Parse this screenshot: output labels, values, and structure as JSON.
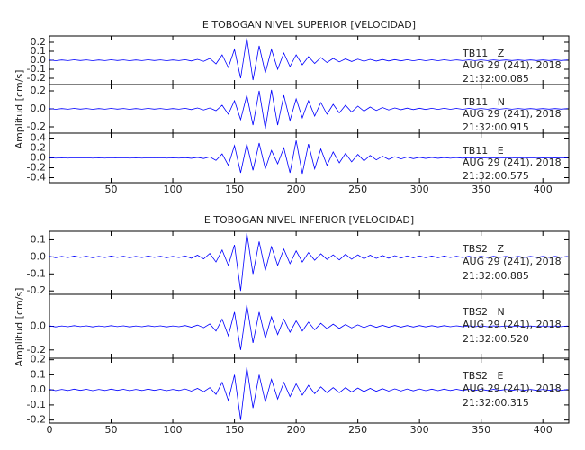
{
  "chart_data": [
    {
      "type": "line",
      "title": "E TOBOGAN NIVEL SUPERIOR [VELOCIDAD]",
      "y_label": "Amplitud [cm/s]",
      "x": [
        0,
        5,
        10,
        15,
        20,
        25,
        30,
        35,
        40,
        45,
        50,
        55,
        60,
        65,
        70,
        75,
        80,
        85,
        90,
        95,
        100,
        105,
        110,
        115,
        120,
        125,
        130,
        135,
        140,
        145,
        150,
        155,
        160,
        165,
        170,
        175,
        180,
        185,
        190,
        195,
        200,
        205,
        210,
        215,
        220,
        225,
        230,
        235,
        240,
        245,
        250,
        255,
        260,
        265,
        270,
        275,
        280,
        285,
        290,
        295,
        300,
        305,
        310,
        315,
        320,
        325,
        330,
        335,
        340,
        345,
        350,
        355,
        360,
        365,
        370,
        375,
        380,
        385,
        390,
        395,
        400,
        405,
        410,
        415,
        420
      ],
      "xlim": [
        0,
        421
      ],
      "xticks": [
        50,
        100,
        150,
        200,
        250,
        300,
        350,
        400
      ],
      "panels": [
        {
          "name": "TB11   Z",
          "date": "AUG 29 (241), 2018",
          "time": "21:32:00.085",
          "color": "#0000ff",
          "ylim": [
            -0.27,
            0.27
          ],
          "yticks": [
            -0.2,
            -0.1,
            {
              "value": 0,
              "label": "0.0"
            },
            0.1,
            0.2
          ],
          "values": [
            0.004,
            -0.005,
            0.003,
            -0.004,
            0.005,
            -0.003,
            0.004,
            -0.005,
            0.003,
            -0.004,
            0.005,
            -0.003,
            0.004,
            -0.005,
            0.003,
            -0.004,
            0.005,
            -0.003,
            0.004,
            -0.005,
            0.003,
            -0.004,
            0.006,
            -0.008,
            0.01,
            -0.012,
            0.02,
            -0.04,
            0.06,
            -0.08,
            0.12,
            -0.2,
            0.25,
            -0.22,
            0.16,
            -0.14,
            0.12,
            -0.1,
            0.08,
            -0.07,
            0.06,
            -0.05,
            0.04,
            -0.035,
            0.03,
            -0.025,
            0.02,
            -0.018,
            0.015,
            -0.014,
            0.012,
            -0.011,
            0.01,
            -0.009,
            0.008,
            -0.008,
            0.007,
            -0.007,
            0.006,
            -0.006,
            0.006,
            -0.005,
            0.005,
            -0.005,
            0.005,
            -0.004,
            0.004,
            -0.004,
            0.004,
            -0.004,
            0.004,
            -0.004,
            0.004,
            -0.003,
            0.003,
            -0.003,
            0.003,
            -0.003,
            0.003,
            -0.003,
            0.003,
            -0.003,
            0.003,
            -0.003,
            0.003
          ]
        },
        {
          "name": "TB11   N",
          "date": "AUG 29 (241), 2018",
          "time": "21:32:00.915",
          "color": "#0000ff",
          "ylim": [
            -0.27,
            0.27
          ],
          "yticks": [
            -0.2,
            {
              "value": 0,
              "label": "0.0"
            },
            0.2
          ],
          "values": [
            0.004,
            -0.005,
            0.003,
            -0.004,
            0.005,
            -0.003,
            0.004,
            -0.005,
            0.003,
            -0.004,
            0.005,
            -0.003,
            0.004,
            -0.005,
            0.003,
            -0.004,
            0.005,
            -0.003,
            0.004,
            -0.005,
            0.003,
            -0.004,
            0.006,
            -0.008,
            0.01,
            -0.012,
            0.01,
            -0.02,
            0.04,
            -0.06,
            0.09,
            -0.12,
            0.15,
            -0.18,
            0.2,
            -0.22,
            0.21,
            -0.18,
            0.15,
            -0.13,
            0.11,
            -0.1,
            0.09,
            -0.08,
            0.07,
            -0.06,
            0.05,
            -0.045,
            0.04,
            -0.035,
            0.03,
            -0.025,
            0.02,
            -0.018,
            0.015,
            -0.012,
            0.01,
            -0.009,
            0.008,
            -0.008,
            0.007,
            -0.007,
            0.006,
            -0.006,
            0.006,
            -0.005,
            0.005,
            -0.005,
            0.005,
            -0.004,
            0.004,
            -0.004,
            0.004,
            -0.004,
            0.004,
            -0.004,
            0.004,
            -0.003,
            0.003,
            -0.003,
            0.003,
            -0.003,
            0.003,
            -0.003,
            0.003
          ]
        },
        {
          "name": "TB11   E",
          "date": "AUG 29 (241), 2018",
          "time": "21:32:00.575",
          "color": "#0000ff",
          "ylim": [
            -0.5,
            0.5
          ],
          "yticks": [
            -0.4,
            -0.2,
            {
              "value": 0,
              "label": "0.0"
            },
            0.2,
            0.4
          ],
          "values": [
            0.004,
            -0.005,
            0.003,
            -0.004,
            0.005,
            -0.003,
            0.004,
            -0.005,
            0.003,
            -0.004,
            0.005,
            -0.003,
            0.004,
            -0.005,
            0.003,
            -0.004,
            0.005,
            -0.003,
            0.004,
            -0.005,
            0.003,
            -0.004,
            0.006,
            -0.008,
            0.01,
            -0.012,
            0.02,
            -0.05,
            0.08,
            -0.15,
            0.25,
            -0.3,
            0.28,
            -0.25,
            0.3,
            -0.22,
            0.15,
            -0.12,
            0.2,
            -0.3,
            0.35,
            -0.32,
            0.28,
            -0.22,
            0.18,
            -0.15,
            0.12,
            -0.1,
            0.09,
            -0.08,
            0.07,
            -0.06,
            0.05,
            -0.04,
            0.035,
            -0.03,
            0.025,
            -0.02,
            0.018,
            -0.015,
            0.012,
            -0.01,
            0.009,
            -0.008,
            0.008,
            -0.007,
            0.007,
            -0.006,
            0.006,
            -0.006,
            0.005,
            -0.005,
            0.005,
            -0.005,
            0.004,
            -0.004,
            0.004,
            -0.004,
            0.004,
            -0.004,
            0.003,
            -0.003,
            0.003,
            -0.003,
            0.003
          ]
        }
      ]
    },
    {
      "type": "line",
      "title": "E TOBOGAN NIVEL INFERIOR [VELOCIDAD]",
      "y_label": "Amplitud [cm/s]",
      "x": [
        0,
        5,
        10,
        15,
        20,
        25,
        30,
        35,
        40,
        45,
        50,
        55,
        60,
        65,
        70,
        75,
        80,
        85,
        90,
        95,
        100,
        105,
        110,
        115,
        120,
        125,
        130,
        135,
        140,
        145,
        150,
        155,
        160,
        165,
        170,
        175,
        180,
        185,
        190,
        195,
        200,
        205,
        210,
        215,
        220,
        225,
        230,
        235,
        240,
        245,
        250,
        255,
        260,
        265,
        270,
        275,
        280,
        285,
        290,
        295,
        300,
        305,
        310,
        315,
        320,
        325,
        330,
        335,
        340,
        345,
        350,
        355,
        360,
        365,
        370,
        375,
        380,
        385,
        390,
        395,
        400,
        405,
        410,
        415,
        420
      ],
      "xlim": [
        0,
        421
      ],
      "xticks": [
        0,
        50,
        100,
        150,
        200,
        250,
        300,
        350,
        400
      ],
      "panels": [
        {
          "name": "TBS2   Z",
          "date": "AUG 29 (241), 2018",
          "time": "21:32:00.885",
          "color": "#0000ff",
          "ylim": [
            -0.22,
            0.15
          ],
          "yticks": [
            -0.2,
            -0.1,
            {
              "value": 0,
              "label": "0.0"
            },
            0.1
          ],
          "values": [
            0.004,
            -0.005,
            0.003,
            -0.004,
            0.005,
            -0.003,
            0.004,
            -0.005,
            0.003,
            -0.004,
            0.005,
            -0.003,
            0.004,
            -0.005,
            0.003,
            -0.004,
            0.005,
            -0.003,
            0.004,
            -0.005,
            0.003,
            -0.004,
            0.006,
            -0.008,
            0.01,
            -0.012,
            0.02,
            -0.03,
            0.04,
            -0.05,
            0.07,
            -0.2,
            0.14,
            -0.1,
            0.09,
            -0.08,
            0.06,
            -0.05,
            0.045,
            -0.04,
            0.035,
            -0.03,
            0.025,
            -0.02,
            0.018,
            -0.015,
            0.012,
            -0.018,
            0.015,
            -0.014,
            0.012,
            -0.011,
            0.01,
            -0.009,
            0.008,
            -0.008,
            0.007,
            -0.007,
            0.006,
            -0.006,
            0.006,
            -0.005,
            0.005,
            -0.005,
            0.005,
            -0.004,
            0.004,
            -0.004,
            0.004,
            -0.004,
            0.004,
            -0.004,
            0.004,
            -0.003,
            0.003,
            -0.003,
            0.003,
            -0.003,
            0.003,
            -0.003,
            0.003,
            -0.003,
            0.003,
            -0.003,
            0.003
          ]
        },
        {
          "name": "TBS2   N",
          "date": "AUG 29 (241), 2018",
          "time": "21:32:00.520",
          "color": "#0000ff",
          "ylim": [
            -0.27,
            0.27
          ],
          "yticks": [
            -0.2,
            {
              "value": 0,
              "label": "0.0"
            }
          ],
          "values": [
            0.004,
            -0.005,
            0.003,
            -0.004,
            0.005,
            -0.003,
            0.004,
            -0.005,
            0.003,
            -0.004,
            0.005,
            -0.003,
            0.004,
            -0.005,
            0.003,
            -0.004,
            0.005,
            -0.003,
            0.004,
            -0.005,
            0.003,
            -0.004,
            0.006,
            -0.008,
            0.01,
            -0.012,
            0.02,
            -0.04,
            0.06,
            -0.08,
            0.12,
            -0.2,
            0.18,
            -0.14,
            0.12,
            -0.1,
            0.08,
            -0.07,
            0.06,
            -0.05,
            0.045,
            -0.04,
            0.035,
            -0.03,
            0.025,
            -0.02,
            0.018,
            -0.018,
            0.015,
            -0.014,
            0.012,
            -0.011,
            0.01,
            -0.009,
            0.008,
            -0.008,
            0.007,
            -0.007,
            0.006,
            -0.006,
            0.006,
            -0.005,
            0.005,
            -0.005,
            0.005,
            -0.004,
            0.004,
            -0.004,
            0.004,
            -0.004,
            0.004,
            -0.004,
            0.004,
            -0.003,
            0.003,
            -0.003,
            0.003,
            -0.003,
            0.003,
            -0.003,
            0.003,
            -0.003,
            0.003,
            -0.003,
            0.003
          ]
        },
        {
          "name": "TBS2   E",
          "date": "AUG 29 (241), 2018",
          "time": "21:32:00.315",
          "color": "#0000ff",
          "ylim": [
            -0.22,
            0.21
          ],
          "yticks": [
            -0.2,
            -0.1,
            {
              "value": 0,
              "label": "0.0"
            },
            0.1,
            0.2
          ],
          "values": [
            0.004,
            -0.005,
            0.003,
            -0.004,
            0.005,
            -0.003,
            0.004,
            -0.005,
            0.003,
            -0.004,
            0.005,
            -0.003,
            0.004,
            -0.005,
            0.003,
            -0.004,
            0.005,
            -0.003,
            0.004,
            -0.005,
            0.003,
            -0.004,
            0.006,
            -0.008,
            0.01,
            -0.012,
            0.015,
            -0.03,
            0.05,
            -0.07,
            0.1,
            -0.2,
            0.15,
            -0.12,
            0.1,
            -0.08,
            0.07,
            -0.06,
            0.05,
            -0.045,
            0.04,
            -0.035,
            0.03,
            -0.025,
            0.02,
            -0.018,
            0.015,
            -0.018,
            0.015,
            -0.014,
            0.012,
            -0.011,
            0.01,
            -0.009,
            0.008,
            -0.008,
            0.007,
            -0.007,
            0.006,
            -0.006,
            0.006,
            -0.005,
            0.005,
            -0.005,
            0.005,
            -0.004,
            0.004,
            -0.004,
            0.004,
            -0.004,
            0.004,
            -0.004,
            0.004,
            -0.003,
            0.003,
            -0.003,
            0.003,
            -0.003,
            0.003,
            -0.003,
            0.003,
            -0.003,
            0.003,
            -0.003,
            0.003
          ]
        }
      ]
    }
  ]
}
